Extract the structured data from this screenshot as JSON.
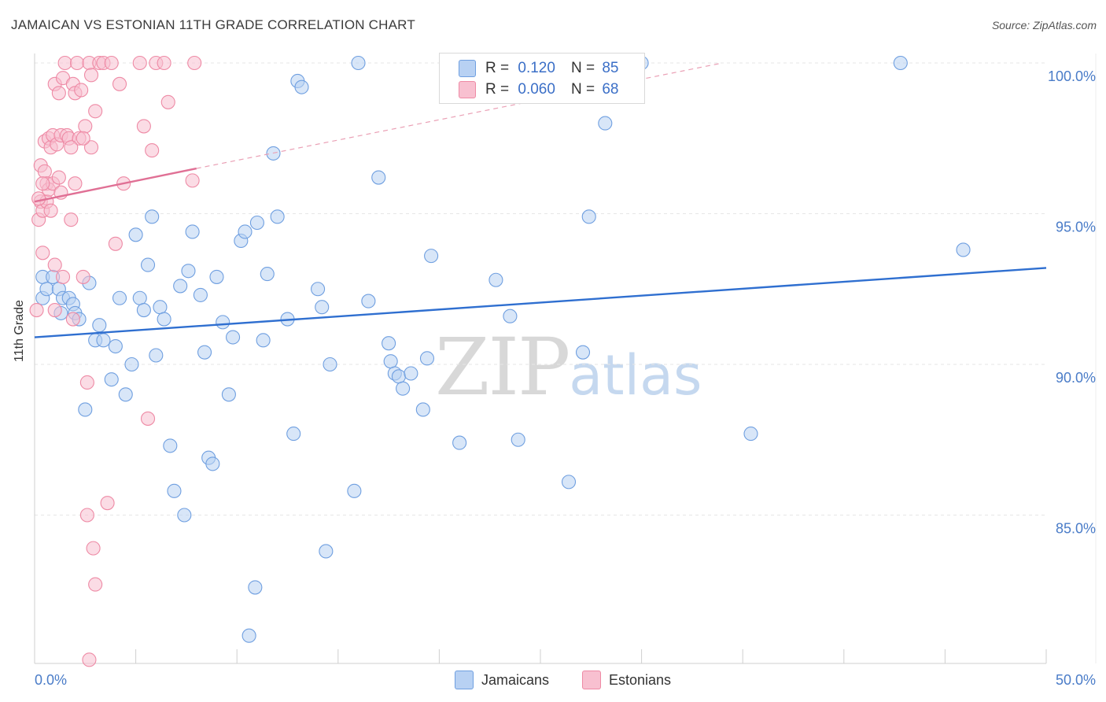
{
  "header": {
    "title": "JAMAICAN VS ESTONIAN 11TH GRADE CORRELATION CHART",
    "source": "Source: ZipAtlas.com"
  },
  "legend": {
    "rows": [
      {
        "r_label": "R =",
        "r_value": "0.120",
        "n_label": "N =",
        "n_value": "85",
        "color": "#b8d1f3"
      },
      {
        "r_label": "R =",
        "r_value": "0.060",
        "n_label": "N =",
        "n_value": "68",
        "color": "#f8c0d0"
      }
    ]
  },
  "bottom_legend": {
    "jamaicans": "Jamaicans",
    "estonians": "Estonians"
  },
  "watermark": {
    "zip": "ZIP",
    "atlas": "atlas"
  },
  "chart_data": {
    "type": "scatter",
    "title": "JAMAICAN VS ESTONIAN 11TH GRADE CORRELATION CHART",
    "xlabel": "",
    "ylabel": "11th Grade",
    "xlim": [
      0,
      50
    ],
    "ylim": [
      80.2,
      100.4
    ],
    "x_tick_labels": [
      "0.0%",
      "50.0%"
    ],
    "y_ticks": [
      85,
      90,
      95,
      100
    ],
    "y_tick_labels": [
      "85.0%",
      "90.0%",
      "95.0%",
      "100.0%"
    ],
    "series": [
      {
        "name": "Jamaicans",
        "color": "#6f9fe0",
        "fill": "#b8d1f3",
        "trend": {
          "x": [
            0,
            50
          ],
          "y": [
            90.9,
            93.2
          ]
        },
        "points": [
          [
            0.4,
            92.2
          ],
          [
            0.4,
            92.9
          ],
          [
            0.6,
            92.5
          ],
          [
            0.9,
            92.9
          ],
          [
            1.2,
            92.5
          ],
          [
            1.3,
            91.7
          ],
          [
            1.4,
            92.2
          ],
          [
            1.7,
            92.2
          ],
          [
            1.9,
            92.0
          ],
          [
            2.0,
            91.7
          ],
          [
            2.2,
            91.5
          ],
          [
            2.5,
            88.5
          ],
          [
            2.7,
            92.7
          ],
          [
            3.0,
            90.8
          ],
          [
            3.2,
            91.3
          ],
          [
            3.4,
            90.8
          ],
          [
            3.8,
            89.5
          ],
          [
            4.0,
            90.6
          ],
          [
            4.2,
            92.2
          ],
          [
            4.5,
            89.0
          ],
          [
            4.8,
            90.0
          ],
          [
            5.0,
            94.3
          ],
          [
            5.2,
            92.2
          ],
          [
            5.4,
            91.8
          ],
          [
            5.6,
            93.3
          ],
          [
            5.8,
            94.9
          ],
          [
            6.0,
            90.3
          ],
          [
            6.2,
            91.9
          ],
          [
            6.4,
            91.5
          ],
          [
            6.7,
            87.3
          ],
          [
            6.9,
            85.8
          ],
          [
            7.2,
            92.6
          ],
          [
            7.4,
            85.0
          ],
          [
            7.6,
            93.1
          ],
          [
            7.8,
            94.4
          ],
          [
            8.2,
            92.3
          ],
          [
            8.4,
            90.4
          ],
          [
            8.6,
            86.9
          ],
          [
            8.8,
            86.7
          ],
          [
            9.0,
            92.9
          ],
          [
            9.3,
            91.4
          ],
          [
            9.6,
            89.0
          ],
          [
            9.8,
            90.9
          ],
          [
            10.2,
            94.1
          ],
          [
            10.4,
            94.4
          ],
          [
            10.6,
            81.0
          ],
          [
            10.9,
            82.6
          ],
          [
            11.0,
            94.7
          ],
          [
            11.3,
            90.8
          ],
          [
            11.5,
            93.0
          ],
          [
            11.8,
            97.0
          ],
          [
            12.0,
            94.9
          ],
          [
            12.5,
            91.5
          ],
          [
            12.8,
            87.7
          ],
          [
            13.0,
            99.4
          ],
          [
            13.2,
            99.2
          ],
          [
            14.0,
            92.5
          ],
          [
            14.2,
            91.9
          ],
          [
            14.4,
            83.8
          ],
          [
            14.6,
            90.0
          ],
          [
            15.8,
            85.8
          ],
          [
            16.0,
            100.0
          ],
          [
            16.5,
            92.1
          ],
          [
            17.0,
            96.2
          ],
          [
            17.5,
            90.7
          ],
          [
            17.6,
            90.1
          ],
          [
            17.8,
            89.7
          ],
          [
            18.0,
            89.6
          ],
          [
            18.2,
            89.2
          ],
          [
            18.6,
            89.7
          ],
          [
            19.2,
            88.5
          ],
          [
            19.4,
            90.2
          ],
          [
            19.6,
            93.6
          ],
          [
            21.0,
            87.4
          ],
          [
            22.8,
            92.8
          ],
          [
            23.5,
            91.6
          ],
          [
            23.9,
            87.5
          ],
          [
            26.4,
            86.1
          ],
          [
            27.1,
            90.4
          ],
          [
            27.4,
            94.9
          ],
          [
            28.2,
            98.0
          ],
          [
            35.4,
            87.7
          ],
          [
            42.8,
            100.0
          ],
          [
            45.9,
            93.8
          ],
          [
            30.0,
            100.0
          ]
        ]
      },
      {
        "name": "Estonians",
        "color": "#ee8aa5",
        "fill": "#f8c0d0",
        "trend": {
          "x": [
            0,
            8
          ],
          "y": [
            95.4,
            96.5
          ],
          "dashed_to": {
            "x": [
              8,
              34
            ],
            "y": [
              96.5,
              100.0
            ]
          }
        },
        "points": [
          [
            0.1,
            91.8
          ],
          [
            0.2,
            94.8
          ],
          [
            0.3,
            95.4
          ],
          [
            0.3,
            96.6
          ],
          [
            0.4,
            93.7
          ],
          [
            0.4,
            95.1
          ],
          [
            0.5,
            96.4
          ],
          [
            0.5,
            97.4
          ],
          [
            0.6,
            96.0
          ],
          [
            0.6,
            95.4
          ],
          [
            0.7,
            97.5
          ],
          [
            0.7,
            95.8
          ],
          [
            0.8,
            97.2
          ],
          [
            0.8,
            95.1
          ],
          [
            0.9,
            97.6
          ],
          [
            0.9,
            96.0
          ],
          [
            1.0,
            99.3
          ],
          [
            1.0,
            93.3
          ],
          [
            1.1,
            97.3
          ],
          [
            1.2,
            99.0
          ],
          [
            1.2,
            96.2
          ],
          [
            1.3,
            97.6
          ],
          [
            1.4,
            99.5
          ],
          [
            1.4,
            92.9
          ],
          [
            1.5,
            100.0
          ],
          [
            1.6,
            97.6
          ],
          [
            1.7,
            97.5
          ],
          [
            1.8,
            94.8
          ],
          [
            1.9,
            99.3
          ],
          [
            1.9,
            91.5
          ],
          [
            2.0,
            99.0
          ],
          [
            2.0,
            96.0
          ],
          [
            2.1,
            100.0
          ],
          [
            2.2,
            97.5
          ],
          [
            2.3,
            99.1
          ],
          [
            2.4,
            92.9
          ],
          [
            2.5,
            97.9
          ],
          [
            2.6,
            89.4
          ],
          [
            2.7,
            100.0
          ],
          [
            2.8,
            99.6
          ],
          [
            3.0,
            98.4
          ],
          [
            3.2,
            100.0
          ],
          [
            3.4,
            100.0
          ],
          [
            3.6,
            85.4
          ],
          [
            3.8,
            100.0
          ],
          [
            4.0,
            94.0
          ],
          [
            4.2,
            99.3
          ],
          [
            4.4,
            96.0
          ],
          [
            5.2,
            100.0
          ],
          [
            5.4,
            97.9
          ],
          [
            5.8,
            97.1
          ],
          [
            6.0,
            100.0
          ],
          [
            6.4,
            100.0
          ],
          [
            6.6,
            98.7
          ],
          [
            7.8,
            96.1
          ],
          [
            7.9,
            100.0
          ],
          [
            2.6,
            85.0
          ],
          [
            2.9,
            83.9
          ],
          [
            3.0,
            82.7
          ],
          [
            2.7,
            80.2
          ],
          [
            5.6,
            88.2
          ],
          [
            2.8,
            97.2
          ],
          [
            1.0,
            91.8
          ],
          [
            0.2,
            95.5
          ],
          [
            0.4,
            96.0
          ],
          [
            1.3,
            95.7
          ],
          [
            2.4,
            97.5
          ],
          [
            1.8,
            97.2
          ]
        ]
      }
    ]
  }
}
